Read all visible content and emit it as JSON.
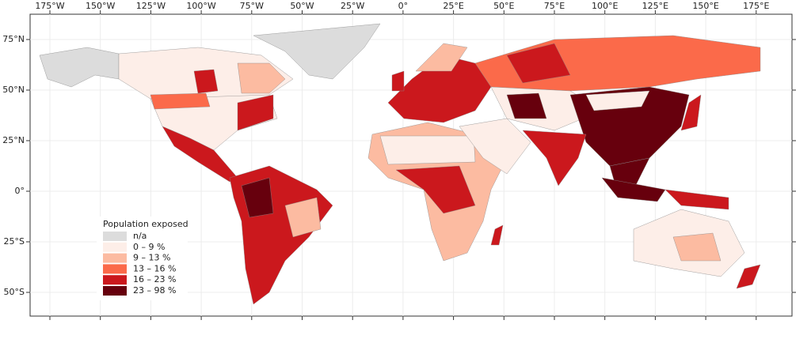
{
  "map": {
    "lon_ticks": [
      {
        "value": -175,
        "label": "175°W"
      },
      {
        "value": -150,
        "label": "150°W"
      },
      {
        "value": -125,
        "label": "125°W"
      },
      {
        "value": -100,
        "label": "100°W"
      },
      {
        "value": -75,
        "label": "75°W"
      },
      {
        "value": -50,
        "label": "50°W"
      },
      {
        "value": -25,
        "label": "25°W"
      },
      {
        "value": 0,
        "label": "0°"
      },
      {
        "value": 25,
        "label": "25°E"
      },
      {
        "value": 50,
        "label": "50°E"
      },
      {
        "value": 75,
        "label": "75°E"
      },
      {
        "value": 100,
        "label": "100°E"
      },
      {
        "value": 125,
        "label": "125°E"
      },
      {
        "value": 150,
        "label": "150°E"
      },
      {
        "value": 175,
        "label": "175°E"
      }
    ],
    "lat_ticks": [
      {
        "value": 75,
        "label": "75°N"
      },
      {
        "value": 50,
        "label": "50°N"
      },
      {
        "value": 25,
        "label": "25°N"
      },
      {
        "value": 0,
        "label": "0°"
      },
      {
        "value": -25,
        "label": "25°S"
      },
      {
        "value": -50,
        "label": "50°S"
      }
    ],
    "legend": {
      "title": "Population exposed",
      "entries": [
        {
          "label": "n/a",
          "color": "#dcdcdc"
        },
        {
          "label": "0 – 9 %",
          "color": "#fdeee8"
        },
        {
          "label": "9 – 13 %",
          "color": "#fcbba1"
        },
        {
          "label": "13 – 16 %",
          "color": "#fb6a4a"
        },
        {
          "label": "16 – 23 %",
          "color": "#cb181d"
        },
        {
          "label": "23 – 98 %",
          "color": "#67000d"
        }
      ]
    }
  }
}
